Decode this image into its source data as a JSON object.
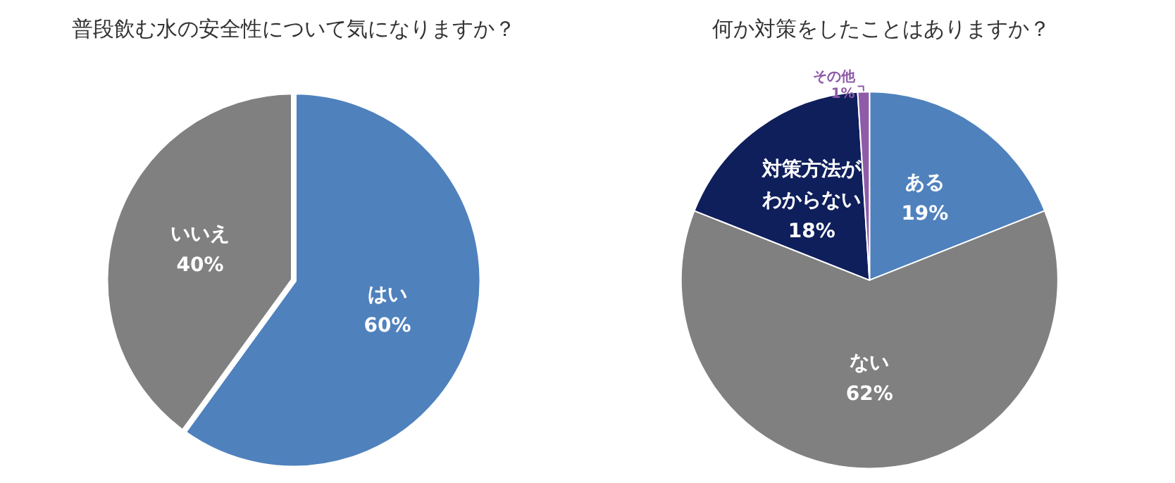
{
  "chart_data": [
    {
      "type": "pie",
      "title": "普段飲む水の安全性について気になりますか？",
      "categories": [
        "はい",
        "いいえ"
      ],
      "values": [
        60,
        40
      ],
      "colors": [
        "#4f81bd",
        "#808080"
      ],
      "value_labels": [
        "60%",
        "40%"
      ]
    },
    {
      "type": "pie",
      "title": "何か対策をしたことはありますか？",
      "categories": [
        "ある",
        "ない",
        "対策方法がわからない",
        "その他"
      ],
      "values": [
        19,
        62,
        18,
        1
      ],
      "colors": [
        "#4f81bd",
        "#808080",
        "#0f1f5c",
        "#8e5ba8"
      ],
      "value_labels": [
        "19%",
        "62%",
        "18%",
        "1%"
      ]
    }
  ]
}
